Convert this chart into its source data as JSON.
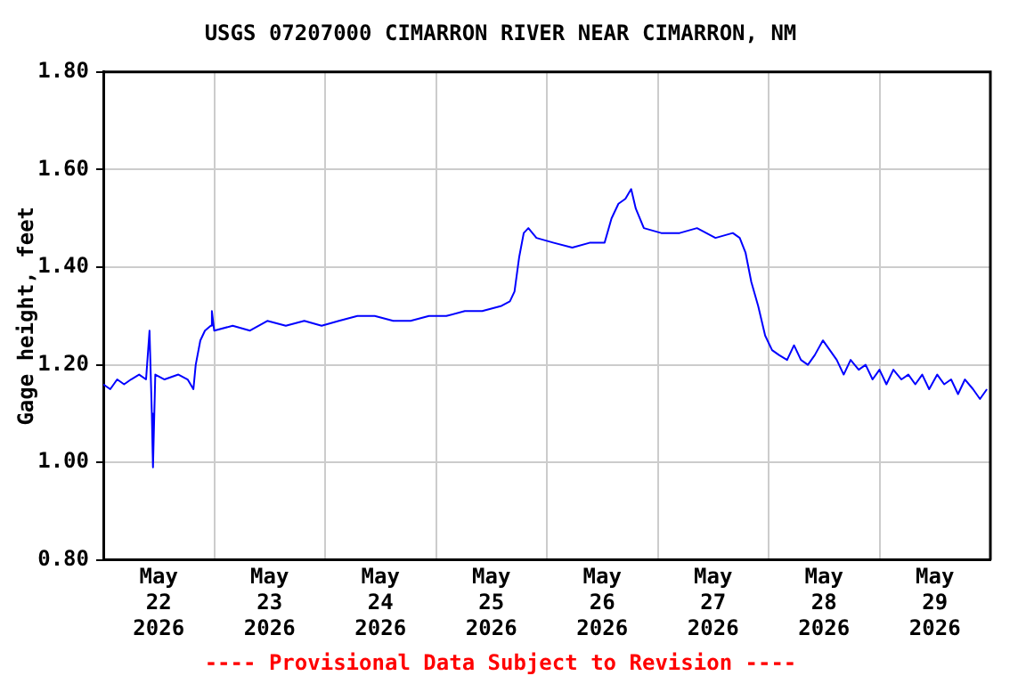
{
  "chart_data": {
    "type": "line",
    "title": "USGS 07207000 CIMARRON RIVER NEAR CIMARRON, NM",
    "ylabel": "Gage height, feet",
    "annotations": [
      "---- Provisional Data Subject to Revision ----"
    ],
    "xlim": [
      "2026-05-22T00:00",
      "2026-05-30T00:00"
    ],
    "xticks": [
      {
        "value": "2026-05-22T12:00",
        "label": "May\n22\n2026"
      },
      {
        "value": "2026-05-23T00:00",
        "label": null
      },
      {
        "value": "2026-05-23T12:00",
        "label": "May\n23\n2026"
      },
      {
        "value": "2026-05-24T00:00",
        "label": null
      },
      {
        "value": "2026-05-24T12:00",
        "label": "May\n24\n2026"
      },
      {
        "value": "2026-05-25T00:00",
        "label": null
      },
      {
        "value": "2026-05-25T12:00",
        "label": "May\n25\n2026"
      },
      {
        "value": "2026-05-26T00:00",
        "label": null
      },
      {
        "value": "2026-05-26T12:00",
        "label": "May\n26\n2026"
      },
      {
        "value": "2026-05-27T00:00",
        "label": null
      },
      {
        "value": "2026-05-27T12:00",
        "label": "May\n27\n2026"
      },
      {
        "value": "2026-05-28T00:00",
        "label": null
      },
      {
        "value": "2026-05-28T12:00",
        "label": "May\n28\n2026"
      },
      {
        "value": "2026-05-29T00:00",
        "label": null
      },
      {
        "value": "2026-05-29T12:00",
        "label": "May\n29\n2026"
      }
    ],
    "ylim": [
      0.8,
      1.8
    ],
    "yticks": [
      {
        "value": 0.8,
        "label": "0.80"
      },
      {
        "value": 1.0,
        "label": "1.00"
      },
      {
        "value": 1.2,
        "label": "1.20"
      },
      {
        "value": 1.4,
        "label": "1.40"
      },
      {
        "value": 1.6,
        "label": "1.60"
      },
      {
        "value": 1.8,
        "label": "1.80"
      }
    ],
    "grid": true,
    "legend": false,
    "marker": "none",
    "line_style": "solid",
    "x": [
      "2026-05-22T00:00",
      "2026-05-22T01:30",
      "2026-05-22T03:00",
      "2026-05-22T04:30",
      "2026-05-22T06:00",
      "2026-05-22T07:45",
      "2026-05-22T09:15",
      "2026-05-22T10:00",
      "2026-05-22T10:30",
      "2026-05-22T10:45",
      "2026-05-22T11:15",
      "2026-05-22T13:15",
      "2026-05-22T16:15",
      "2026-05-22T18:15",
      "2026-05-22T19:30",
      "2026-05-22T20:00",
      "2026-05-22T21:00",
      "2026-05-22T22:00",
      "2026-05-22T23:15",
      "2026-05-22T23:30",
      "2026-05-23T00:00",
      "2026-05-23T04:00",
      "2026-05-23T07:45",
      "2026-05-23T11:30",
      "2026-05-23T15:30",
      "2026-05-23T19:30",
      "2026-05-23T23:15",
      "2026-05-24T03:00",
      "2026-05-24T07:00",
      "2026-05-24T10:45",
      "2026-05-24T14:45",
      "2026-05-24T18:30",
      "2026-05-24T22:30",
      "2026-05-25T02:15",
      "2026-05-25T06:15",
      "2026-05-25T10:00",
      "2026-05-25T14:00",
      "2026-05-25T16:00",
      "2026-05-25T17:00",
      "2026-05-25T18:00",
      "2026-05-25T19:00",
      "2026-05-25T20:00",
      "2026-05-25T21:45",
      "2026-05-26T01:30",
      "2026-05-26T05:30",
      "2026-05-26T09:15",
      "2026-05-26T12:30",
      "2026-05-26T14:00",
      "2026-05-26T15:30",
      "2026-05-26T17:00",
      "2026-05-26T18:15",
      "2026-05-26T19:15",
      "2026-05-26T21:00",
      "2026-05-27T00:45",
      "2026-05-27T04:45",
      "2026-05-27T08:30",
      "2026-05-27T12:30",
      "2026-05-27T16:15",
      "2026-05-27T17:45",
      "2026-05-27T19:00",
      "2026-05-27T20:15",
      "2026-05-27T21:45",
      "2026-05-27T23:15",
      "2026-05-28T00:45",
      "2026-05-28T02:15",
      "2026-05-28T04:00",
      "2026-05-28T05:30",
      "2026-05-28T07:00",
      "2026-05-28T08:30",
      "2026-05-28T10:00",
      "2026-05-28T11:45",
      "2026-05-28T13:15",
      "2026-05-28T14:45",
      "2026-05-28T16:15",
      "2026-05-28T17:45",
      "2026-05-28T19:30",
      "2026-05-28T21:00",
      "2026-05-28T22:30",
      "2026-05-29T00:00",
      "2026-05-29T01:30",
      "2026-05-29T03:00",
      "2026-05-29T04:45",
      "2026-05-29T06:15",
      "2026-05-29T07:45",
      "2026-05-29T09:15",
      "2026-05-29T10:45",
      "2026-05-29T12:30",
      "2026-05-29T14:00",
      "2026-05-29T15:30",
      "2026-05-29T17:00",
      "2026-05-29T18:30",
      "2026-05-29T20:15",
      "2026-05-29T21:45",
      "2026-05-29T23:15"
    ],
    "series": [
      {
        "color": "#0000ff",
        "values": [
          1.16,
          1.15,
          1.17,
          1.16,
          1.17,
          1.18,
          1.17,
          1.27,
          1.1,
          0.99,
          1.18,
          1.17,
          1.18,
          1.17,
          1.15,
          1.2,
          1.25,
          1.27,
          1.28,
          1.31,
          1.27,
          1.28,
          1.27,
          1.29,
          1.28,
          1.29,
          1.28,
          1.29,
          1.3,
          1.3,
          1.29,
          1.29,
          1.3,
          1.3,
          1.31,
          1.31,
          1.32,
          1.33,
          1.35,
          1.42,
          1.47,
          1.48,
          1.46,
          1.45,
          1.44,
          1.45,
          1.45,
          1.5,
          1.53,
          1.54,
          1.56,
          1.52,
          1.48,
          1.47,
          1.47,
          1.48,
          1.46,
          1.47,
          1.46,
          1.43,
          1.37,
          1.32,
          1.26,
          1.23,
          1.22,
          1.21,
          1.24,
          1.21,
          1.2,
          1.22,
          1.25,
          1.23,
          1.21,
          1.18,
          1.21,
          1.19,
          1.2,
          1.17,
          1.19,
          1.16,
          1.19,
          1.17,
          1.18,
          1.16,
          1.18,
          1.15,
          1.18,
          1.16,
          1.17,
          1.14,
          1.17,
          1.15,
          1.13,
          1.15
        ]
      }
    ]
  }
}
